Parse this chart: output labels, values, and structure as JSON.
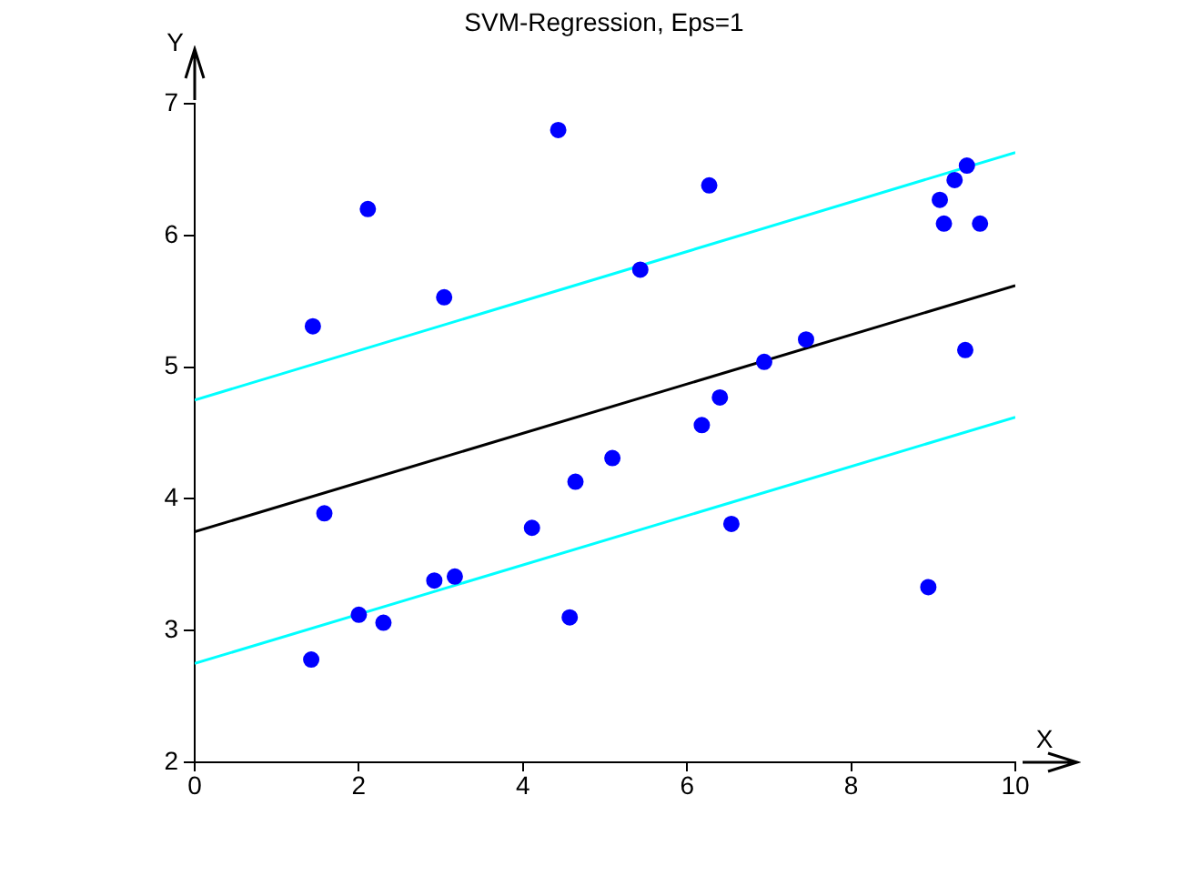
{
  "chart_data": {
    "type": "scatter",
    "title": "SVM-Regression, Eps=1",
    "xlabel": "X",
    "ylabel": "Y",
    "xlim": [
      0,
      10
    ],
    "ylim": [
      2,
      7
    ],
    "xticks": [
      0,
      2,
      4,
      6,
      8,
      10
    ],
    "yticks": [
      2,
      3,
      4,
      5,
      6,
      7
    ],
    "grid": false,
    "legend": false,
    "marker": "circle",
    "series": [
      {
        "color": "#0000ff",
        "x": [
          1.44,
          2.11,
          3.04,
          4.43,
          1.58,
          2.0,
          1.42,
          2.3,
          2.92,
          3.17,
          4.11,
          4.64,
          5.09,
          4.57,
          6.27,
          5.43,
          7.45,
          6.94,
          6.4,
          6.18,
          6.54,
          8.94,
          9.39,
          9.41,
          9.26,
          9.08,
          9.13,
          9.57
        ],
        "values": [
          5.31,
          6.2,
          5.53,
          6.8,
          3.89,
          3.12,
          2.78,
          3.06,
          3.38,
          3.41,
          3.78,
          4.13,
          4.31,
          3.1,
          6.38,
          5.74,
          5.21,
          5.04,
          4.77,
          4.56,
          3.81,
          3.33,
          5.13,
          6.53,
          6.42,
          6.27,
          6.09,
          6.09
        ]
      },
      {
        "type": "line",
        "marker": "none",
        "color": "#000000",
        "x": [
          0,
          10
        ],
        "values": [
          3.75,
          5.62
        ]
      },
      {
        "type": "line",
        "marker": "none",
        "color": "#00ffff",
        "x": [
          0,
          10
        ],
        "values": [
          4.75,
          6.63
        ]
      },
      {
        "type": "line",
        "marker": "none",
        "color": "#00ffff",
        "x": [
          0,
          10
        ],
        "values": [
          2.75,
          4.62
        ]
      }
    ]
  }
}
